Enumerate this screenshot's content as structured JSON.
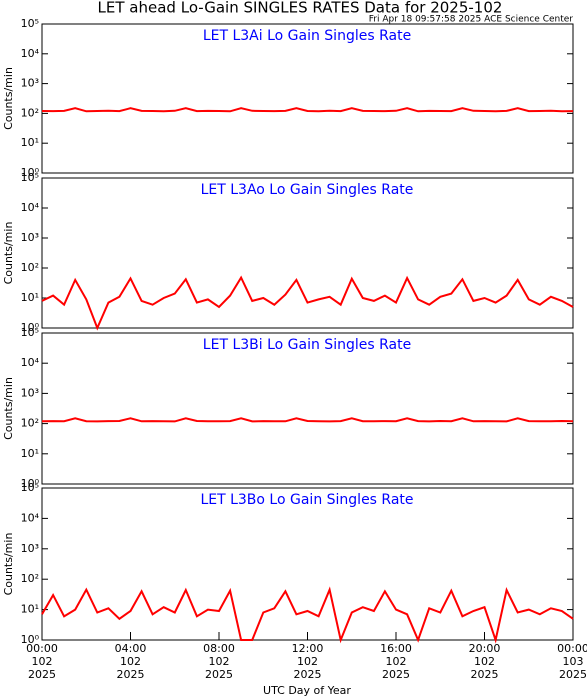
{
  "title": "LET ahead Lo-Gain SINGLES RATES Data for 2025-102",
  "subtitle": "Fri Apr 18 09:57:58 2025 ACE Science Center",
  "chart_data": [
    {
      "type": "line",
      "title": "LET L3Ai Lo Gain Singles Rate",
      "ylabel": "Counts/min",
      "log_scale": true,
      "xlim": [
        0,
        24
      ],
      "ylim": [
        1,
        100000
      ],
      "yticks": [
        {
          "value": 1,
          "label": "10⁰"
        },
        {
          "value": 10,
          "label": "10¹"
        },
        {
          "value": 100,
          "label": "10²"
        },
        {
          "value": 1000,
          "label": "10³"
        },
        {
          "value": 10000,
          "label": "10⁴"
        },
        {
          "value": 100000,
          "label": "10⁵"
        }
      ],
      "x": [
        0,
        0.5,
        1,
        1.5,
        2,
        2.5,
        3,
        3.5,
        4,
        4.5,
        5,
        5.5,
        6,
        6.5,
        7,
        7.5,
        8,
        8.5,
        9,
        9.5,
        10,
        10.5,
        11,
        11.5,
        12,
        12.5,
        13,
        13.5,
        14,
        14.5,
        15,
        15.5,
        16,
        16.5,
        17,
        17.5,
        18,
        18.5,
        19,
        19.5,
        20,
        20.5,
        21,
        21.5,
        22,
        22.5,
        23,
        23.5,
        24
      ],
      "series": [
        {
          "color": "#ff0000",
          "values": [
            120,
            119,
            121,
            150,
            118,
            120,
            122,
            119,
            150,
            121,
            120,
            118,
            122,
            150,
            119,
            121,
            120,
            118,
            150,
            122,
            120,
            119,
            121,
            150,
            120,
            118,
            122,
            119,
            150,
            121,
            120,
            119,
            122,
            150,
            118,
            121,
            120,
            119,
            150,
            122,
            120,
            118,
            121,
            150,
            119,
            120,
            122,
            118,
            119
          ]
        }
      ]
    },
    {
      "type": "line",
      "title": "LET L3Ao Lo Gain Singles Rate",
      "ylabel": "Counts/min",
      "log_scale": true,
      "xlim": [
        0,
        24
      ],
      "ylim": [
        1,
        100000
      ],
      "yticks": [
        {
          "value": 1,
          "label": "10⁰"
        },
        {
          "value": 10,
          "label": "10¹"
        },
        {
          "value": 100,
          "label": "10²"
        },
        {
          "value": 1000,
          "label": "10³"
        },
        {
          "value": 10000,
          "label": "10⁴"
        },
        {
          "value": 100000,
          "label": "10⁵"
        }
      ],
      "x": [
        0,
        0.5,
        1,
        1.5,
        2,
        2.5,
        3,
        3.5,
        4,
        4.5,
        5,
        5.5,
        6,
        6.5,
        7,
        7.5,
        8,
        8.5,
        9,
        9.5,
        10,
        10.5,
        11,
        11.5,
        12,
        12.5,
        13,
        13.5,
        14,
        14.5,
        15,
        15.5,
        16,
        16.5,
        17,
        17.5,
        18,
        18.5,
        19,
        19.5,
        20,
        20.5,
        21,
        21.5,
        22,
        22.5,
        23,
        23.5,
        24
      ],
      "series": [
        {
          "color": "#ff0000",
          "values": [
            8,
            12,
            6,
            40,
            9,
            1,
            7,
            11,
            45,
            8,
            6,
            10,
            14,
            42,
            7,
            9,
            5,
            12,
            48,
            8,
            10,
            6,
            13,
            40,
            7,
            9,
            11,
            6,
            44,
            10,
            8,
            12,
            7,
            46,
            9,
            6,
            11,
            14,
            42,
            8,
            10,
            7,
            12,
            40,
            9,
            6,
            11,
            8,
            5
          ]
        }
      ]
    },
    {
      "type": "line",
      "title": "LET L3Bi Lo Gain Singles Rate",
      "ylabel": "Counts/min",
      "log_scale": true,
      "xlim": [
        0,
        24
      ],
      "ylim": [
        1,
        100000
      ],
      "yticks": [
        {
          "value": 1,
          "label": "10⁰"
        },
        {
          "value": 10,
          "label": "10¹"
        },
        {
          "value": 100,
          "label": "10²"
        },
        {
          "value": 1000,
          "label": "10³"
        },
        {
          "value": 10000,
          "label": "10⁴"
        },
        {
          "value": 100000,
          "label": "10⁵"
        }
      ],
      "x": [
        0,
        0.5,
        1,
        1.5,
        2,
        2.5,
        3,
        3.5,
        4,
        4.5,
        5,
        5.5,
        6,
        6.5,
        7,
        7.5,
        8,
        8.5,
        9,
        9.5,
        10,
        10.5,
        11,
        11.5,
        12,
        12.5,
        13,
        13.5,
        14,
        14.5,
        15,
        15.5,
        16,
        16.5,
        17,
        17.5,
        18,
        18.5,
        19,
        19.5,
        20,
        20.5,
        21,
        21.5,
        22,
        22.5,
        23,
        23.5,
        24
      ],
      "series": [
        {
          "color": "#ff0000",
          "values": [
            119,
            121,
            120,
            150,
            120,
            118,
            121,
            122,
            150,
            119,
            121,
            120,
            118,
            150,
            122,
            119,
            120,
            121,
            150,
            118,
            121,
            120,
            119,
            150,
            122,
            120,
            118,
            121,
            150,
            120,
            119,
            121,
            120,
            150,
            121,
            118,
            122,
            120,
            150,
            119,
            121,
            120,
            118,
            150,
            121,
            119,
            120,
            122,
            120
          ]
        }
      ]
    },
    {
      "type": "line",
      "title": "LET L3Bo Lo Gain Singles Rate",
      "ylabel": "Counts/min",
      "xlabel": "UTC Day of Year",
      "log_scale": true,
      "xlim": [
        0,
        24
      ],
      "ylim": [
        1,
        100000
      ],
      "yticks": [
        {
          "value": 1,
          "label": "10⁰"
        },
        {
          "value": 10,
          "label": "10¹"
        },
        {
          "value": 100,
          "label": "10²"
        },
        {
          "value": 1000,
          "label": "10³"
        },
        {
          "value": 10000,
          "label": "10⁴"
        },
        {
          "value": 100000,
          "label": "10⁵"
        }
      ],
      "xticks": [
        {
          "value": 0,
          "label": [
            "00:00",
            "102",
            "2025"
          ]
        },
        {
          "value": 4,
          "label": [
            "04:00",
            "102",
            "2025"
          ]
        },
        {
          "value": 8,
          "label": [
            "08:00",
            "102",
            "2025"
          ]
        },
        {
          "value": 12,
          "label": [
            "12:00",
            "102",
            "2025"
          ]
        },
        {
          "value": 16,
          "label": [
            "16:00",
            "102",
            "2025"
          ]
        },
        {
          "value": 20,
          "label": [
            "20:00",
            "102",
            "2025"
          ]
        },
        {
          "value": 24,
          "label": [
            "00:00",
            "103",
            "2025"
          ]
        }
      ],
      "x": [
        0,
        0.5,
        1,
        1.5,
        2,
        2.5,
        3,
        3.5,
        4,
        4.5,
        5,
        5.5,
        6,
        6.5,
        7,
        7.5,
        8,
        8.5,
        9,
        9.5,
        10,
        10.5,
        11,
        11.5,
        12,
        12.5,
        13,
        13.5,
        14,
        14.5,
        15,
        15.5,
        16,
        16.5,
        17,
        17.5,
        18,
        18.5,
        19,
        19.5,
        20,
        20.5,
        21,
        21.5,
        22,
        22.5,
        23,
        23.5,
        24
      ],
      "series": [
        {
          "color": "#ff0000",
          "values": [
            7,
            30,
            6,
            10,
            45,
            8,
            11,
            5,
            9,
            40,
            7,
            12,
            8,
            44,
            6,
            10,
            9,
            42,
            1,
            1,
            8,
            11,
            40,
            7,
            9,
            6,
            45,
            1,
            8,
            12,
            9,
            40,
            10,
            7,
            1,
            11,
            8,
            42,
            6,
            9,
            12,
            1,
            44,
            8,
            10,
            7,
            11,
            9,
            5
          ]
        }
      ]
    }
  ]
}
